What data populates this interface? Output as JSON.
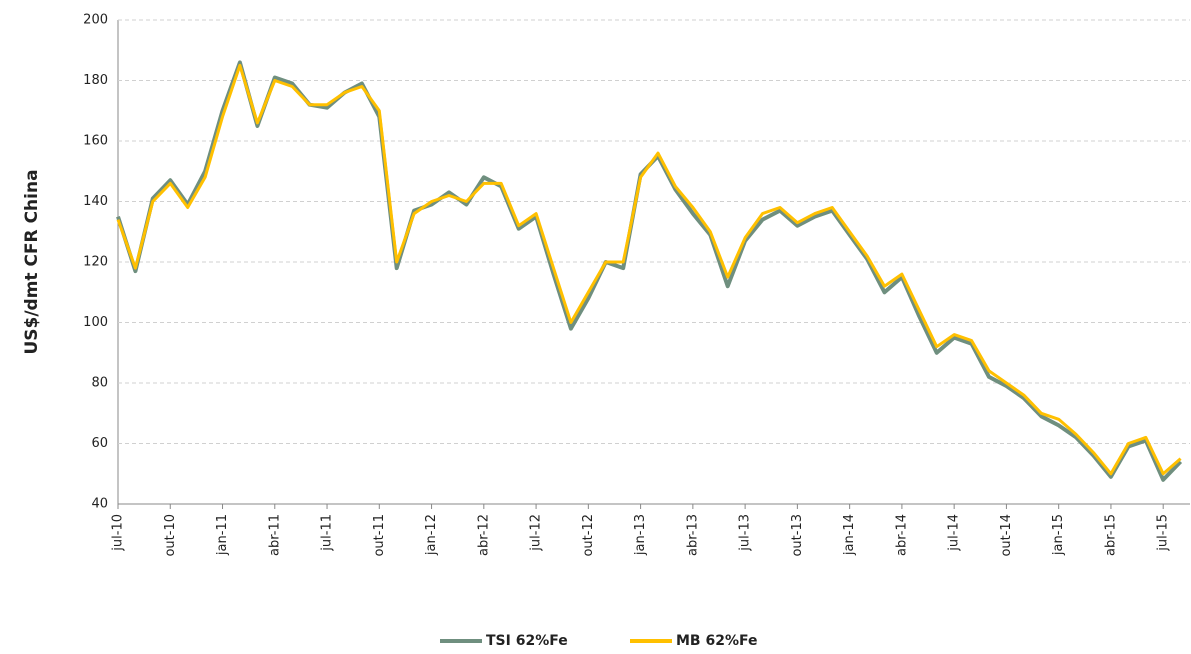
{
  "chart_data": {
    "type": "line",
    "y_label": "US$/dmt CFR China",
    "categories": [
      "jul-10",
      null,
      null,
      "out-10",
      null,
      null,
      "jan-11",
      null,
      null,
      "abr-11",
      null,
      null,
      "jul-11",
      null,
      null,
      "out-11",
      null,
      null,
      "jan-12",
      null,
      null,
      "abr-12",
      null,
      null,
      "jul-12",
      null,
      null,
      "out-12",
      null,
      null,
      "jan-13",
      null,
      null,
      "abr-13",
      null,
      null,
      "jul-13",
      null,
      null,
      "out-13",
      null,
      null,
      "jan-14",
      null,
      null,
      "abr-14",
      null,
      null,
      "jul-14",
      null,
      null,
      "out-14",
      null,
      null,
      "jan-15",
      null,
      null,
      "abr-15",
      null,
      null,
      "jul-15",
      null
    ],
    "series": [
      {
        "name": "TSI 62%Fe",
        "color": "#6f8f7f",
        "values": [
          135,
          117,
          141,
          147,
          139,
          150,
          170,
          186,
          165,
          181,
          179,
          172,
          171,
          176,
          179,
          168,
          118,
          137,
          139,
          143,
          139,
          148,
          145,
          131,
          135,
          116,
          98,
          108,
          120,
          118,
          149,
          155,
          144,
          136,
          129,
          112,
          127,
          134,
          137,
          132,
          135,
          137,
          129,
          121,
          110,
          115,
          102,
          90,
          95,
          93,
          82,
          79,
          75,
          69,
          66,
          62,
          56,
          49,
          59,
          61,
          48,
          54
        ]
      },
      {
        "name": "MB 62%Fe",
        "color": "#ffc000",
        "values": [
          134,
          118,
          140,
          146,
          138,
          148,
          168,
          185,
          166,
          180,
          178,
          172,
          172,
          176,
          178,
          170,
          120,
          136,
          140,
          142,
          140,
          146,
          146,
          132,
          136,
          118,
          100,
          110,
          120,
          120,
          148,
          156,
          145,
          138,
          130,
          115,
          128,
          136,
          138,
          133,
          136,
          138,
          130,
          122,
          112,
          116,
          104,
          92,
          96,
          94,
          84,
          80,
          76,
          70,
          68,
          63,
          57,
          50,
          60,
          62,
          50,
          55
        ]
      }
    ],
    "ylim": [
      40,
      200
    ],
    "yticks": [
      40,
      60,
      80,
      100,
      120,
      140,
      160,
      180,
      200
    ],
    "grid": true,
    "legend": "bottom"
  }
}
